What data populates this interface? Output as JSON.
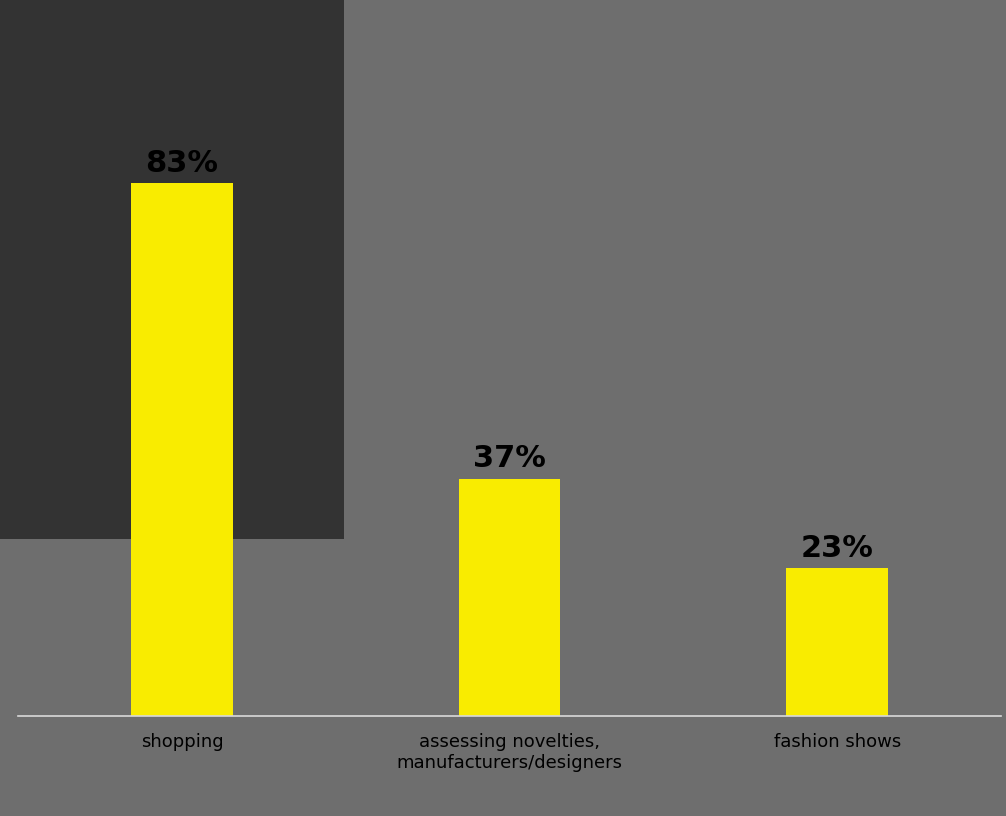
{
  "chart_data": {
    "type": "bar",
    "categories": [
      "shopping",
      "assessing novelties, manufacturers/designers",
      "fashion shows"
    ],
    "values": [
      83,
      37,
      23
    ],
    "value_labels": [
      "83%",
      "37%",
      "23%"
    ],
    "data_labels": true,
    "color": "#f9ec00",
    "ylim": [
      0,
      100
    ],
    "tick_labels": "x",
    "grid": false
  }
}
